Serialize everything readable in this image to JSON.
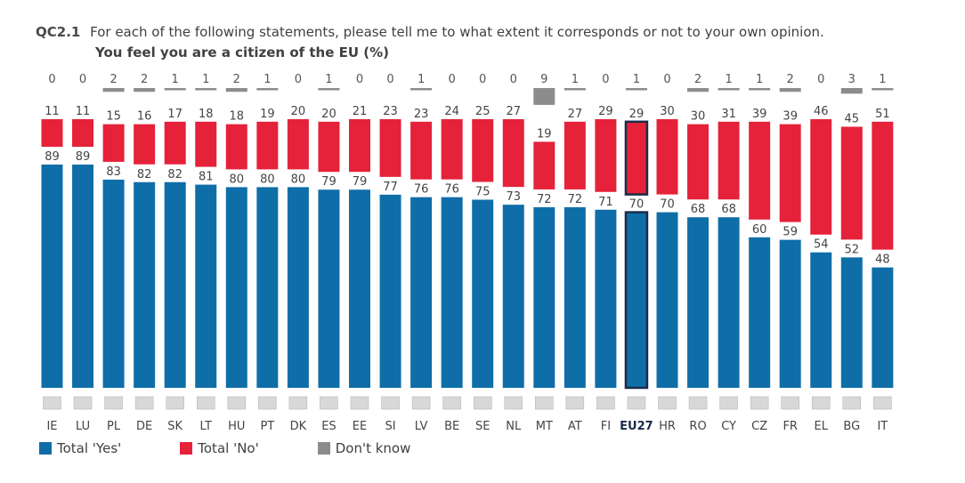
{
  "header": {
    "code": "QC2.1",
    "question": "For each of the following statements, please tell me to what extent it corresponds or not to your own opinion.",
    "subtitle": "You feel you are a citizen of the EU  (%)"
  },
  "colors": {
    "yes": "#0f6ea8",
    "no": "#e5223a",
    "dk": "#8c8c8c",
    "eu_outline": "#1a2b4a"
  },
  "legend": {
    "yes": "Total 'Yes'",
    "no": "Total 'No'",
    "dk": "Don't know"
  },
  "chart_data": {
    "type": "bar",
    "stacked": true,
    "categories": [
      "IE",
      "LU",
      "PL",
      "DE",
      "SK",
      "LT",
      "HU",
      "PT",
      "DK",
      "ES",
      "EE",
      "SI",
      "LV",
      "BE",
      "SE",
      "NL",
      "MT",
      "AT",
      "FI",
      "EU27",
      "HR",
      "RO",
      "CY",
      "CZ",
      "FR",
      "EL",
      "BG",
      "IT"
    ],
    "series": [
      {
        "name": "Total 'Yes'",
        "values": [
          89,
          89,
          83,
          82,
          82,
          81,
          80,
          80,
          80,
          79,
          79,
          77,
          76,
          76,
          75,
          73,
          72,
          72,
          71,
          70,
          70,
          68,
          68,
          60,
          59,
          54,
          52,
          48
        ]
      },
      {
        "name": "Total 'No'",
        "values": [
          11,
          11,
          15,
          16,
          17,
          18,
          18,
          19,
          20,
          20,
          21,
          23,
          23,
          24,
          25,
          27,
          19,
          27,
          29,
          29,
          30,
          30,
          31,
          39,
          39,
          46,
          45,
          51
        ]
      },
      {
        "name": "Don't know",
        "values": [
          0,
          0,
          2,
          2,
          1,
          1,
          2,
          1,
          0,
          1,
          0,
          0,
          1,
          0,
          0,
          0,
          9,
          1,
          0,
          1,
          0,
          2,
          1,
          1,
          2,
          0,
          3,
          1
        ]
      }
    ],
    "highlight": "EU27",
    "ylim": [
      0,
      100
    ]
  }
}
